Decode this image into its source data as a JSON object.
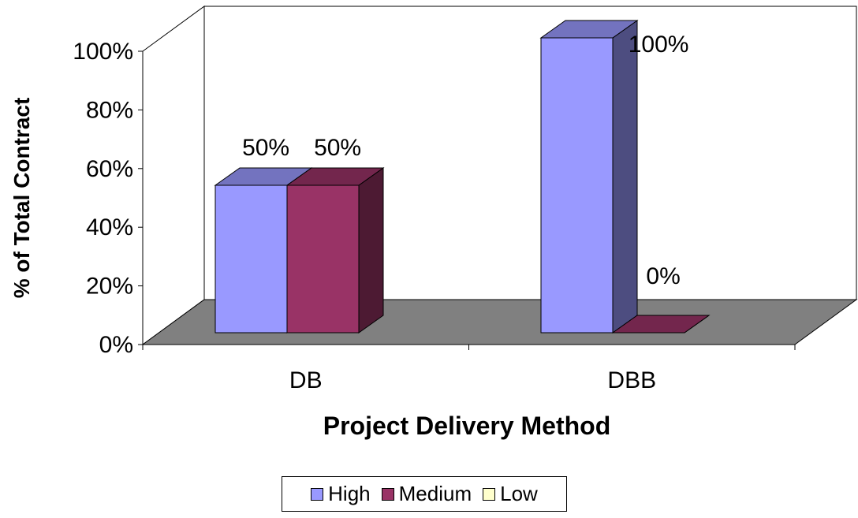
{
  "chart_data": {
    "type": "bar",
    "title": "",
    "xlabel": "Project Delivery Method",
    "ylabel": "% of Total Contract",
    "categories": [
      "DB",
      "DBB"
    ],
    "series": [
      {
        "name": "High",
        "values": [
          50,
          100
        ],
        "color": "#9999FF"
      },
      {
        "name": "Medium",
        "values": [
          50,
          0
        ],
        "color": "#993366"
      },
      {
        "name": "Low",
        "values": [
          0,
          0
        ],
        "color": "#FFFFCC"
      }
    ],
    "data_labels": [
      {
        "series": "High",
        "category": "DB",
        "text": "50%"
      },
      {
        "series": "Medium",
        "category": "DB",
        "text": "50%"
      },
      {
        "series": "High",
        "category": "DBB",
        "text": "100%"
      },
      {
        "series": "Medium",
        "category": "DBB",
        "text": "0%"
      }
    ],
    "yticks": [
      "0%",
      "20%",
      "40%",
      "60%",
      "80%",
      "100%"
    ],
    "ylim": [
      0,
      100
    ],
    "style": "3d-clustered",
    "floor_color": "#808080",
    "legend_position": "bottom"
  }
}
